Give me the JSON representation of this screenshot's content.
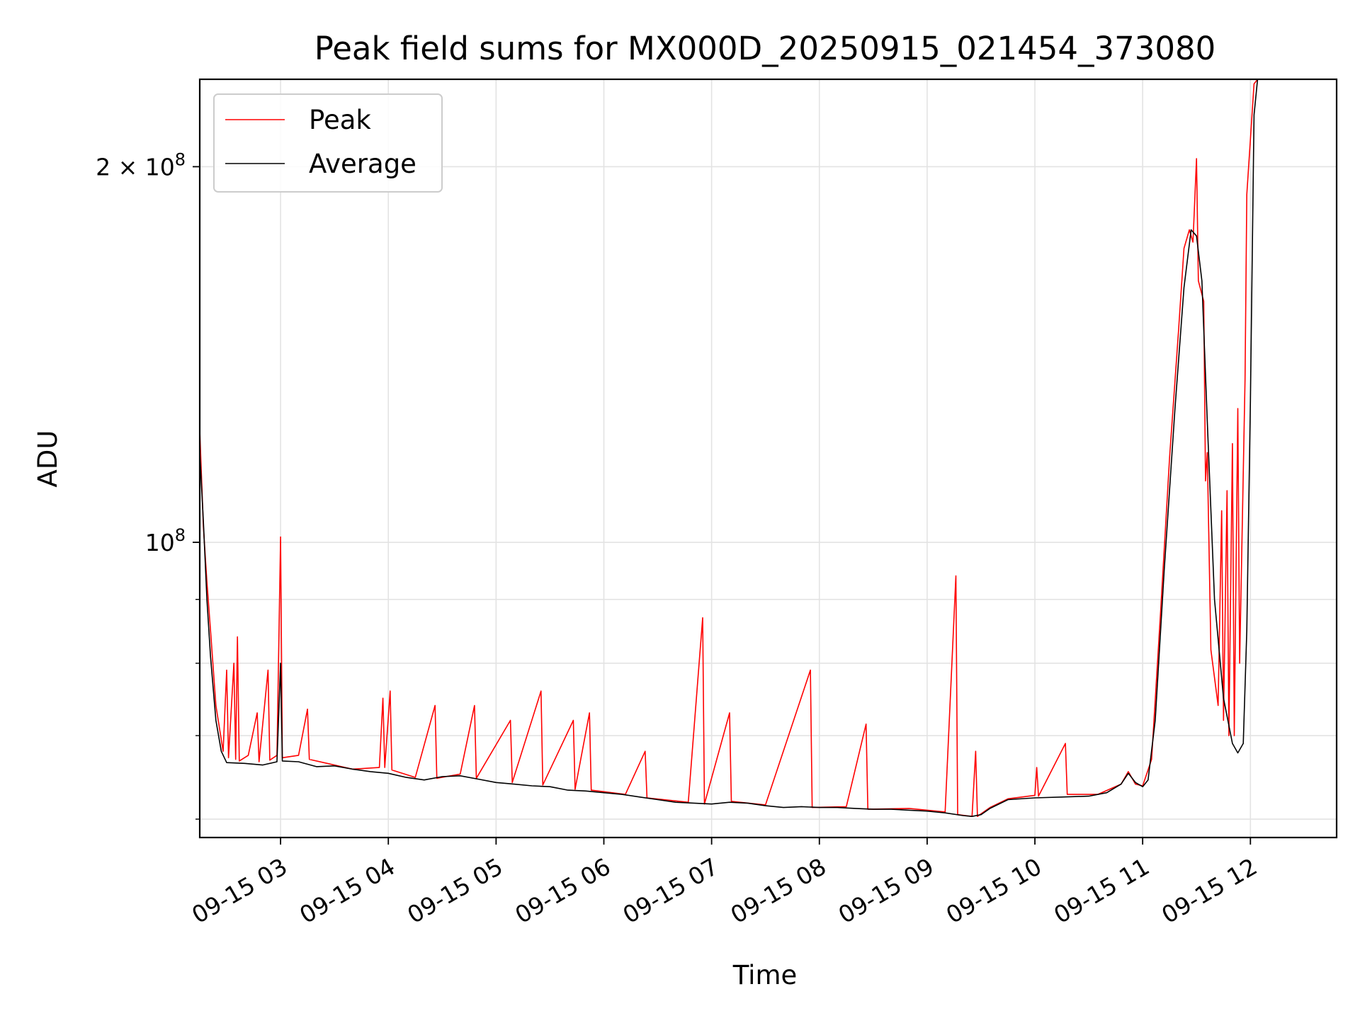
{
  "chart_data": {
    "type": "line",
    "title": "Peak field sums for MX000D_20250915_021454_373080",
    "xlabel": "Time",
    "ylabel": "ADU",
    "y_scale": "log",
    "grid": true,
    "legend_position": "top-left",
    "xlim": [
      "2025-09-15 02:15",
      "2025-09-15 12:48"
    ],
    "ylim": [
      58000000,
      235000000
    ],
    "x_ticks": [
      {
        "t": "2025-09-15 03:00",
        "label": "09-15 03"
      },
      {
        "t": "2025-09-15 04:00",
        "label": "09-15 04"
      },
      {
        "t": "2025-09-15 05:00",
        "label": "09-15 05"
      },
      {
        "t": "2025-09-15 06:00",
        "label": "09-15 06"
      },
      {
        "t": "2025-09-15 07:00",
        "label": "09-15 07"
      },
      {
        "t": "2025-09-15 08:00",
        "label": "09-15 08"
      },
      {
        "t": "2025-09-15 09:00",
        "label": "09-15 09"
      },
      {
        "t": "2025-09-15 10:00",
        "label": "09-15 10"
      },
      {
        "t": "2025-09-15 11:00",
        "label": "09-15 11"
      },
      {
        "t": "2025-09-15 12:00",
        "label": "09-15 12"
      }
    ],
    "y_ticks_major": [
      {
        "value": 100000000,
        "base": "10",
        "exp": "8",
        "coef": ""
      },
      {
        "value": 200000000,
        "base": "10",
        "exp": "8",
        "coef": "2 × "
      }
    ],
    "y_ticks_minor": [
      60000000,
      70000000,
      80000000,
      90000000
    ],
    "series": [
      {
        "name": "Peak",
        "color": "#ff0000",
        "points": [
          [
            "2025-09-15 02:15",
            123000000
          ],
          [
            "2025-09-15 02:17",
            103000000
          ],
          [
            "2025-09-15 02:19",
            93000000
          ],
          [
            "2025-09-15 02:21",
            85000000
          ],
          [
            "2025-09-15 02:24",
            74000000
          ],
          [
            "2025-09-15 02:28",
            68000000
          ],
          [
            "2025-09-15 02:30",
            79000000
          ],
          [
            "2025-09-15 02:31",
            67200000
          ],
          [
            "2025-09-15 02:34",
            80000000
          ],
          [
            "2025-09-15 02:35",
            67000000
          ],
          [
            "2025-09-15 02:36",
            84000000
          ],
          [
            "2025-09-15 02:37",
            66800000
          ],
          [
            "2025-09-15 02:42",
            67500000
          ],
          [
            "2025-09-15 02:47",
            73000000
          ],
          [
            "2025-09-15 02:48",
            66700000
          ],
          [
            "2025-09-15 02:53",
            79000000
          ],
          [
            "2025-09-15 02:54",
            66900000
          ],
          [
            "2025-09-15 02:58",
            67500000
          ],
          [
            "2025-09-15 03:00",
            101000000
          ],
          [
            "2025-09-15 03:01",
            67200000
          ],
          [
            "2025-09-15 03:10",
            67500000
          ],
          [
            "2025-09-15 03:15",
            73500000
          ],
          [
            "2025-09-15 03:16",
            67000000
          ],
          [
            "2025-09-15 03:26",
            66500000
          ],
          [
            "2025-09-15 03:40",
            65800000
          ],
          [
            "2025-09-15 03:55",
            66000000
          ],
          [
            "2025-09-15 03:57",
            75000000
          ],
          [
            "2025-09-15 03:58",
            66000000
          ],
          [
            "2025-09-15 04:01",
            76000000
          ],
          [
            "2025-09-15 04:02",
            65700000
          ],
          [
            "2025-09-15 04:15",
            64800000
          ],
          [
            "2025-09-15 04:26",
            74000000
          ],
          [
            "2025-09-15 04:27",
            64700000
          ],
          [
            "2025-09-15 04:40",
            65200000
          ],
          [
            "2025-09-15 04:48",
            74000000
          ],
          [
            "2025-09-15 04:49",
            64700000
          ],
          [
            "2025-09-15 05:08",
            72000000
          ],
          [
            "2025-09-15 05:09",
            64200000
          ],
          [
            "2025-09-15 05:25",
            76000000
          ],
          [
            "2025-09-15 05:26",
            63900000
          ],
          [
            "2025-09-15 05:43",
            72000000
          ],
          [
            "2025-09-15 05:44",
            63400000
          ],
          [
            "2025-09-15 05:52",
            73000000
          ],
          [
            "2025-09-15 05:53",
            63300000
          ],
          [
            "2025-09-15 06:12",
            62800000
          ],
          [
            "2025-09-15 06:23",
            68000000
          ],
          [
            "2025-09-15 06:24",
            62400000
          ],
          [
            "2025-09-15 06:47",
            61900000
          ],
          [
            "2025-09-15 06:55",
            87000000
          ],
          [
            "2025-09-15 06:56",
            61700000
          ],
          [
            "2025-09-15 07:10",
            73000000
          ],
          [
            "2025-09-15 07:11",
            62000000
          ],
          [
            "2025-09-15 07:30",
            61600000
          ],
          [
            "2025-09-15 07:55",
            79000000
          ],
          [
            "2025-09-15 07:56",
            61300000
          ],
          [
            "2025-09-15 08:15",
            61400000
          ],
          [
            "2025-09-15 08:26",
            71500000
          ],
          [
            "2025-09-15 08:27",
            61100000
          ],
          [
            "2025-09-15 08:50",
            61200000
          ],
          [
            "2025-09-15 09:10",
            60800000
          ],
          [
            "2025-09-15 09:16",
            94000000
          ],
          [
            "2025-09-15 09:17",
            60500000
          ],
          [
            "2025-09-15 09:25",
            60300000
          ],
          [
            "2025-09-15 09:27",
            68000000
          ],
          [
            "2025-09-15 09:28",
            60300000
          ],
          [
            "2025-09-15 09:35",
            61300000
          ],
          [
            "2025-09-15 09:45",
            62300000
          ],
          [
            "2025-09-15 10:00",
            62700000
          ],
          [
            "2025-09-15 10:01",
            66000000
          ],
          [
            "2025-09-15 10:02",
            62600000
          ],
          [
            "2025-09-15 10:17",
            69000000
          ],
          [
            "2025-09-15 10:18",
            62800000
          ],
          [
            "2025-09-15 10:35",
            62800000
          ],
          [
            "2025-09-15 10:48",
            64000000
          ],
          [
            "2025-09-15 10:52",
            65500000
          ],
          [
            "2025-09-15 10:56",
            64000000
          ],
          [
            "2025-09-15 11:00",
            63800000
          ],
          [
            "2025-09-15 11:05",
            67000000
          ],
          [
            "2025-09-15 11:10",
            88000000
          ],
          [
            "2025-09-15 11:15",
            117000000
          ],
          [
            "2025-09-15 11:20",
            148000000
          ],
          [
            "2025-09-15 11:23",
            172000000
          ],
          [
            "2025-09-15 11:26",
            178000000
          ],
          [
            "2025-09-15 11:28",
            174000000
          ],
          [
            "2025-09-15 11:30",
            203000000
          ],
          [
            "2025-09-15 11:31",
            162000000
          ],
          [
            "2025-09-15 11:34",
            156000000
          ],
          [
            "2025-09-15 11:35",
            112000000
          ],
          [
            "2025-09-15 11:36",
            118000000
          ],
          [
            "2025-09-15 11:38",
            82000000
          ],
          [
            "2025-09-15 11:42",
            74000000
          ],
          [
            "2025-09-15 11:44",
            106000000
          ],
          [
            "2025-09-15 11:45",
            72000000
          ],
          [
            "2025-09-15 11:47",
            110000000
          ],
          [
            "2025-09-15 11:48",
            70000000
          ],
          [
            "2025-09-15 11:50",
            120000000
          ],
          [
            "2025-09-15 11:51",
            70000000
          ],
          [
            "2025-09-15 11:53",
            128000000
          ],
          [
            "2025-09-15 11:54",
            80000000
          ],
          [
            "2025-09-15 11:57",
            135000000
          ],
          [
            "2025-09-15 11:58",
            190000000
          ],
          [
            "2025-09-15 12:02",
            233000000
          ],
          [
            "2025-09-15 12:04",
            235000000
          ]
        ]
      },
      {
        "name": "Average",
        "color": "#000000",
        "points": [
          [
            "2025-09-15 02:15",
            118000000
          ],
          [
            "2025-09-15 02:17",
            104000000
          ],
          [
            "2025-09-15 02:19",
            90000000
          ],
          [
            "2025-09-15 02:21",
            81000000
          ],
          [
            "2025-09-15 02:24",
            72000000
          ],
          [
            "2025-09-15 02:27",
            68000000
          ],
          [
            "2025-09-15 02:30",
            66600000
          ],
          [
            "2025-09-15 02:40",
            66500000
          ],
          [
            "2025-09-15 02:50",
            66300000
          ],
          [
            "2025-09-15 02:58",
            66700000
          ],
          [
            "2025-09-15 03:00",
            80000000
          ],
          [
            "2025-09-15 03:01",
            66800000
          ],
          [
            "2025-09-15 03:10",
            66700000
          ],
          [
            "2025-09-15 03:20",
            66100000
          ],
          [
            "2025-09-15 03:30",
            66200000
          ],
          [
            "2025-09-15 03:40",
            65800000
          ],
          [
            "2025-09-15 03:50",
            65500000
          ],
          [
            "2025-09-15 04:00",
            65300000
          ],
          [
            "2025-09-15 04:10",
            64800000
          ],
          [
            "2025-09-15 04:20",
            64500000
          ],
          [
            "2025-09-15 04:30",
            64900000
          ],
          [
            "2025-09-15 04:40",
            65000000
          ],
          [
            "2025-09-15 04:50",
            64600000
          ],
          [
            "2025-09-15 05:00",
            64200000
          ],
          [
            "2025-09-15 05:10",
            64000000
          ],
          [
            "2025-09-15 05:20",
            63800000
          ],
          [
            "2025-09-15 05:30",
            63700000
          ],
          [
            "2025-09-15 05:40",
            63300000
          ],
          [
            "2025-09-15 05:50",
            63200000
          ],
          [
            "2025-09-15 06:00",
            63000000
          ],
          [
            "2025-09-15 06:10",
            62800000
          ],
          [
            "2025-09-15 06:20",
            62500000
          ],
          [
            "2025-09-15 06:30",
            62200000
          ],
          [
            "2025-09-15 06:40",
            61900000
          ],
          [
            "2025-09-15 06:50",
            61800000
          ],
          [
            "2025-09-15 07:00",
            61700000
          ],
          [
            "2025-09-15 07:10",
            61900000
          ],
          [
            "2025-09-15 07:20",
            61800000
          ],
          [
            "2025-09-15 07:30",
            61500000
          ],
          [
            "2025-09-15 07:40",
            61300000
          ],
          [
            "2025-09-15 07:50",
            61400000
          ],
          [
            "2025-09-15 08:00",
            61300000
          ],
          [
            "2025-09-15 08:10",
            61300000
          ],
          [
            "2025-09-15 08:20",
            61200000
          ],
          [
            "2025-09-15 08:30",
            61100000
          ],
          [
            "2025-09-15 08:40",
            61100000
          ],
          [
            "2025-09-15 08:50",
            61000000
          ],
          [
            "2025-09-15 09:00",
            60900000
          ],
          [
            "2025-09-15 09:10",
            60700000
          ],
          [
            "2025-09-15 09:20",
            60400000
          ],
          [
            "2025-09-15 09:25",
            60300000
          ],
          [
            "2025-09-15 09:30",
            60500000
          ],
          [
            "2025-09-15 09:35",
            61200000
          ],
          [
            "2025-09-15 09:45",
            62200000
          ],
          [
            "2025-09-15 10:00",
            62400000
          ],
          [
            "2025-09-15 10:15",
            62500000
          ],
          [
            "2025-09-15 10:30",
            62600000
          ],
          [
            "2025-09-15 10:40",
            63000000
          ],
          [
            "2025-09-15 10:48",
            64000000
          ],
          [
            "2025-09-15 10:52",
            65300000
          ],
          [
            "2025-09-15 10:56",
            64200000
          ],
          [
            "2025-09-15 11:00",
            63700000
          ],
          [
            "2025-09-15 11:03",
            64500000
          ],
          [
            "2025-09-15 11:07",
            72000000
          ],
          [
            "2025-09-15 11:12",
            95000000
          ],
          [
            "2025-09-15 11:18",
            128000000
          ],
          [
            "2025-09-15 11:23",
            160000000
          ],
          [
            "2025-09-15 11:27",
            178000000
          ],
          [
            "2025-09-15 11:30",
            176000000
          ],
          [
            "2025-09-15 11:33",
            162000000
          ],
          [
            "2025-09-15 11:36",
            125000000
          ],
          [
            "2025-09-15 11:40",
            90000000
          ],
          [
            "2025-09-15 11:45",
            75000000
          ],
          [
            "2025-09-15 11:50",
            69000000
          ],
          [
            "2025-09-15 11:53",
            67800000
          ],
          [
            "2025-09-15 11:56",
            69000000
          ],
          [
            "2025-09-15 11:58",
            85000000
          ],
          [
            "2025-09-15 12:00",
            130000000
          ],
          [
            "2025-09-15 12:02",
            220000000
          ],
          [
            "2025-09-15 12:04",
            235000000
          ],
          [
            "2025-09-15 12:06",
            235000000
          ]
        ]
      }
    ]
  }
}
